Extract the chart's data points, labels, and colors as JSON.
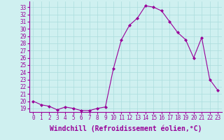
{
  "x": [
    0,
    1,
    2,
    3,
    4,
    5,
    6,
    7,
    8,
    9,
    10,
    11,
    12,
    13,
    14,
    15,
    16,
    17,
    18,
    19,
    20,
    21,
    22,
    23
  ],
  "y": [
    20.0,
    19.5,
    19.3,
    18.8,
    19.2,
    19.0,
    18.7,
    18.7,
    19.0,
    19.2,
    24.5,
    28.5,
    30.5,
    31.5,
    33.2,
    33.0,
    32.5,
    31.0,
    29.5,
    28.5,
    26.0,
    28.8,
    23.0,
    21.5
  ],
  "line_color": "#990099",
  "marker": "D",
  "marker_size": 2.0,
  "bg_color": "#cff0f0",
  "grid_color": "#aadddd",
  "xlabel": "Windchill (Refroidissement éolien,°C)",
  "xlim": [
    -0.5,
    23.5
  ],
  "ylim": [
    18.5,
    33.8
  ],
  "yticks": [
    19,
    20,
    21,
    22,
    23,
    24,
    25,
    26,
    27,
    28,
    29,
    30,
    31,
    32,
    33
  ],
  "xtick_labels": [
    "0",
    "1",
    "2",
    "3",
    "4",
    "5",
    "6",
    "7",
    "8",
    "9",
    "10",
    "11",
    "12",
    "13",
    "14",
    "15",
    "16",
    "17",
    "18",
    "19",
    "20",
    "21",
    "22",
    "23"
  ],
  "tick_color": "#990099",
  "label_color": "#990099",
  "tick_fontsize": 5.5,
  "xlabel_fontsize": 7.0,
  "spine_color": "#990099",
  "linewidth": 0.8
}
